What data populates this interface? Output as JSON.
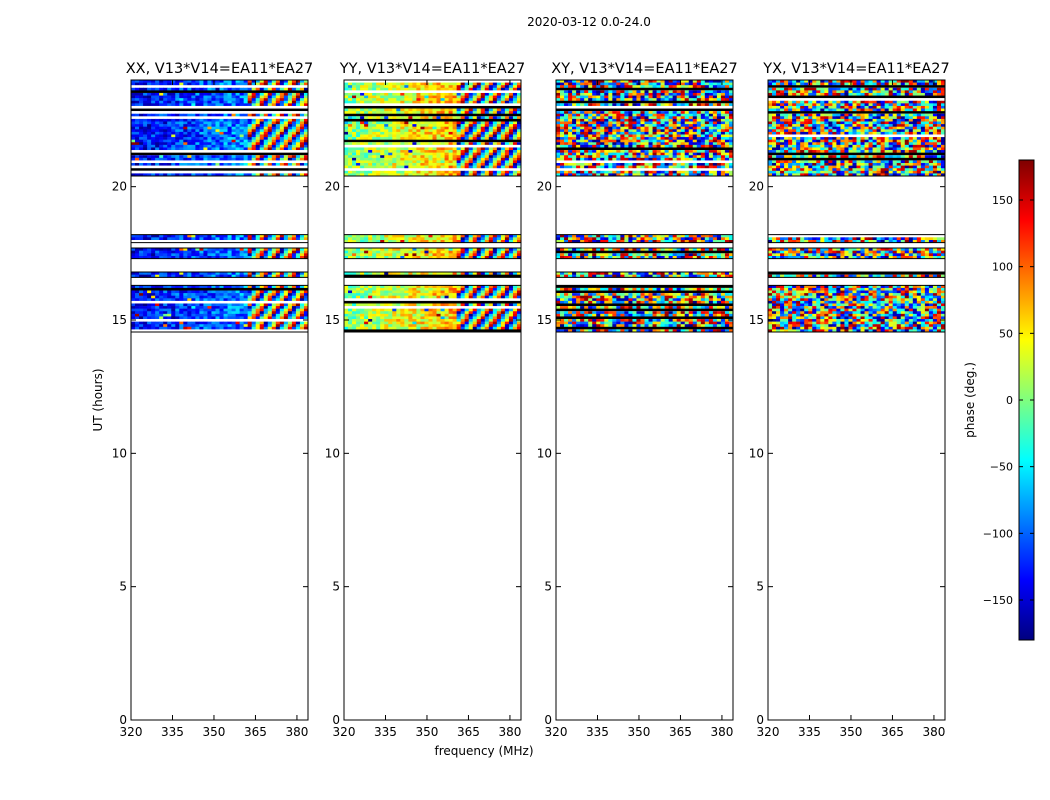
{
  "figure": {
    "suptitle": "2020-03-12 0.0-24.0"
  },
  "colormap": {
    "name": "jet",
    "stops": [
      "#00007f",
      "#0000ff",
      "#007fff",
      "#00ffff",
      "#7fff7f",
      "#ffff00",
      "#ff7f00",
      "#ff0000",
      "#7f0000"
    ]
  },
  "chart_data": [
    {
      "type": "heatmap",
      "title": "XX, V13*V14=EA11*EA27",
      "product": "XX",
      "xlabel": "",
      "ylabel": "UT (hours)",
      "xlim": [
        320,
        384
      ],
      "ylim": [
        0,
        24
      ],
      "xticks": [
        320,
        335,
        350,
        365,
        380
      ],
      "yticks": [
        0,
        5,
        10,
        15,
        20
      ],
      "mean_phase_low_freq": -140,
      "mean_phase_high_freq": -60,
      "fringe_start_mhz": 362,
      "data_hours": [
        [
          14.55,
          16.3
        ],
        [
          16.6,
          16.8
        ],
        [
          17.3,
          17.7
        ],
        [
          17.9,
          18.2
        ],
        [
          20.4,
          24.0
        ]
      ]
    },
    {
      "type": "heatmap",
      "title": "YY, V13*V14=EA11*EA27",
      "product": "YY",
      "xlabel": "frequency (MHz)",
      "ylabel": "",
      "xlim": [
        320,
        384
      ],
      "ylim": [
        0,
        24
      ],
      "xticks": [
        320,
        335,
        350,
        365,
        380
      ],
      "yticks": [
        0,
        5,
        10,
        15,
        20
      ],
      "mean_phase_low_freq": 0,
      "mean_phase_high_freq": 110,
      "fringe_start_mhz": 360,
      "data_hours": [
        [
          14.55,
          16.3
        ],
        [
          16.6,
          16.8
        ],
        [
          17.3,
          17.7
        ],
        [
          17.9,
          18.2
        ],
        [
          20.4,
          24.0
        ]
      ]
    },
    {
      "type": "heatmap",
      "title": "XY, V13*V14=EA11*EA27",
      "product": "XY",
      "xlabel": "",
      "ylabel": "",
      "xlim": [
        320,
        384
      ],
      "ylim": [
        0,
        24
      ],
      "xticks": [
        320,
        335,
        350,
        365,
        380
      ],
      "yticks": [
        0,
        5,
        10,
        15,
        20
      ],
      "mean_phase_low_freq": null,
      "mean_phase_high_freq": null,
      "fringe_start_mhz": 360,
      "data_hours": [
        [
          14.55,
          16.3
        ],
        [
          16.6,
          16.8
        ],
        [
          17.3,
          17.7
        ],
        [
          17.9,
          18.2
        ],
        [
          20.4,
          24.0
        ]
      ]
    },
    {
      "type": "heatmap",
      "title": "YX, V13*V14=EA11*EA27",
      "product": "YX",
      "xlabel": "",
      "ylabel": "",
      "xlim": [
        320,
        384
      ],
      "ylim": [
        0,
        24
      ],
      "xticks": [
        320,
        335,
        350,
        365,
        380
      ],
      "yticks": [
        0,
        5,
        10,
        15,
        20
      ],
      "mean_phase_low_freq": null,
      "mean_phase_high_freq": null,
      "fringe_start_mhz": 360,
      "data_hours": [
        [
          14.55,
          16.3
        ],
        [
          16.6,
          16.8
        ],
        [
          17.3,
          17.7
        ],
        [
          17.9,
          18.2
        ],
        [
          20.4,
          24.0
        ]
      ]
    }
  ],
  "colorbar": {
    "label": "phase (deg.)",
    "range": [
      -180,
      180
    ],
    "ticks": [
      150,
      100,
      50,
      0,
      -50,
      -100,
      -150
    ],
    "tick_labels": [
      "150",
      "100",
      "50",
      "0",
      "−50",
      "−100",
      "−150"
    ]
  }
}
